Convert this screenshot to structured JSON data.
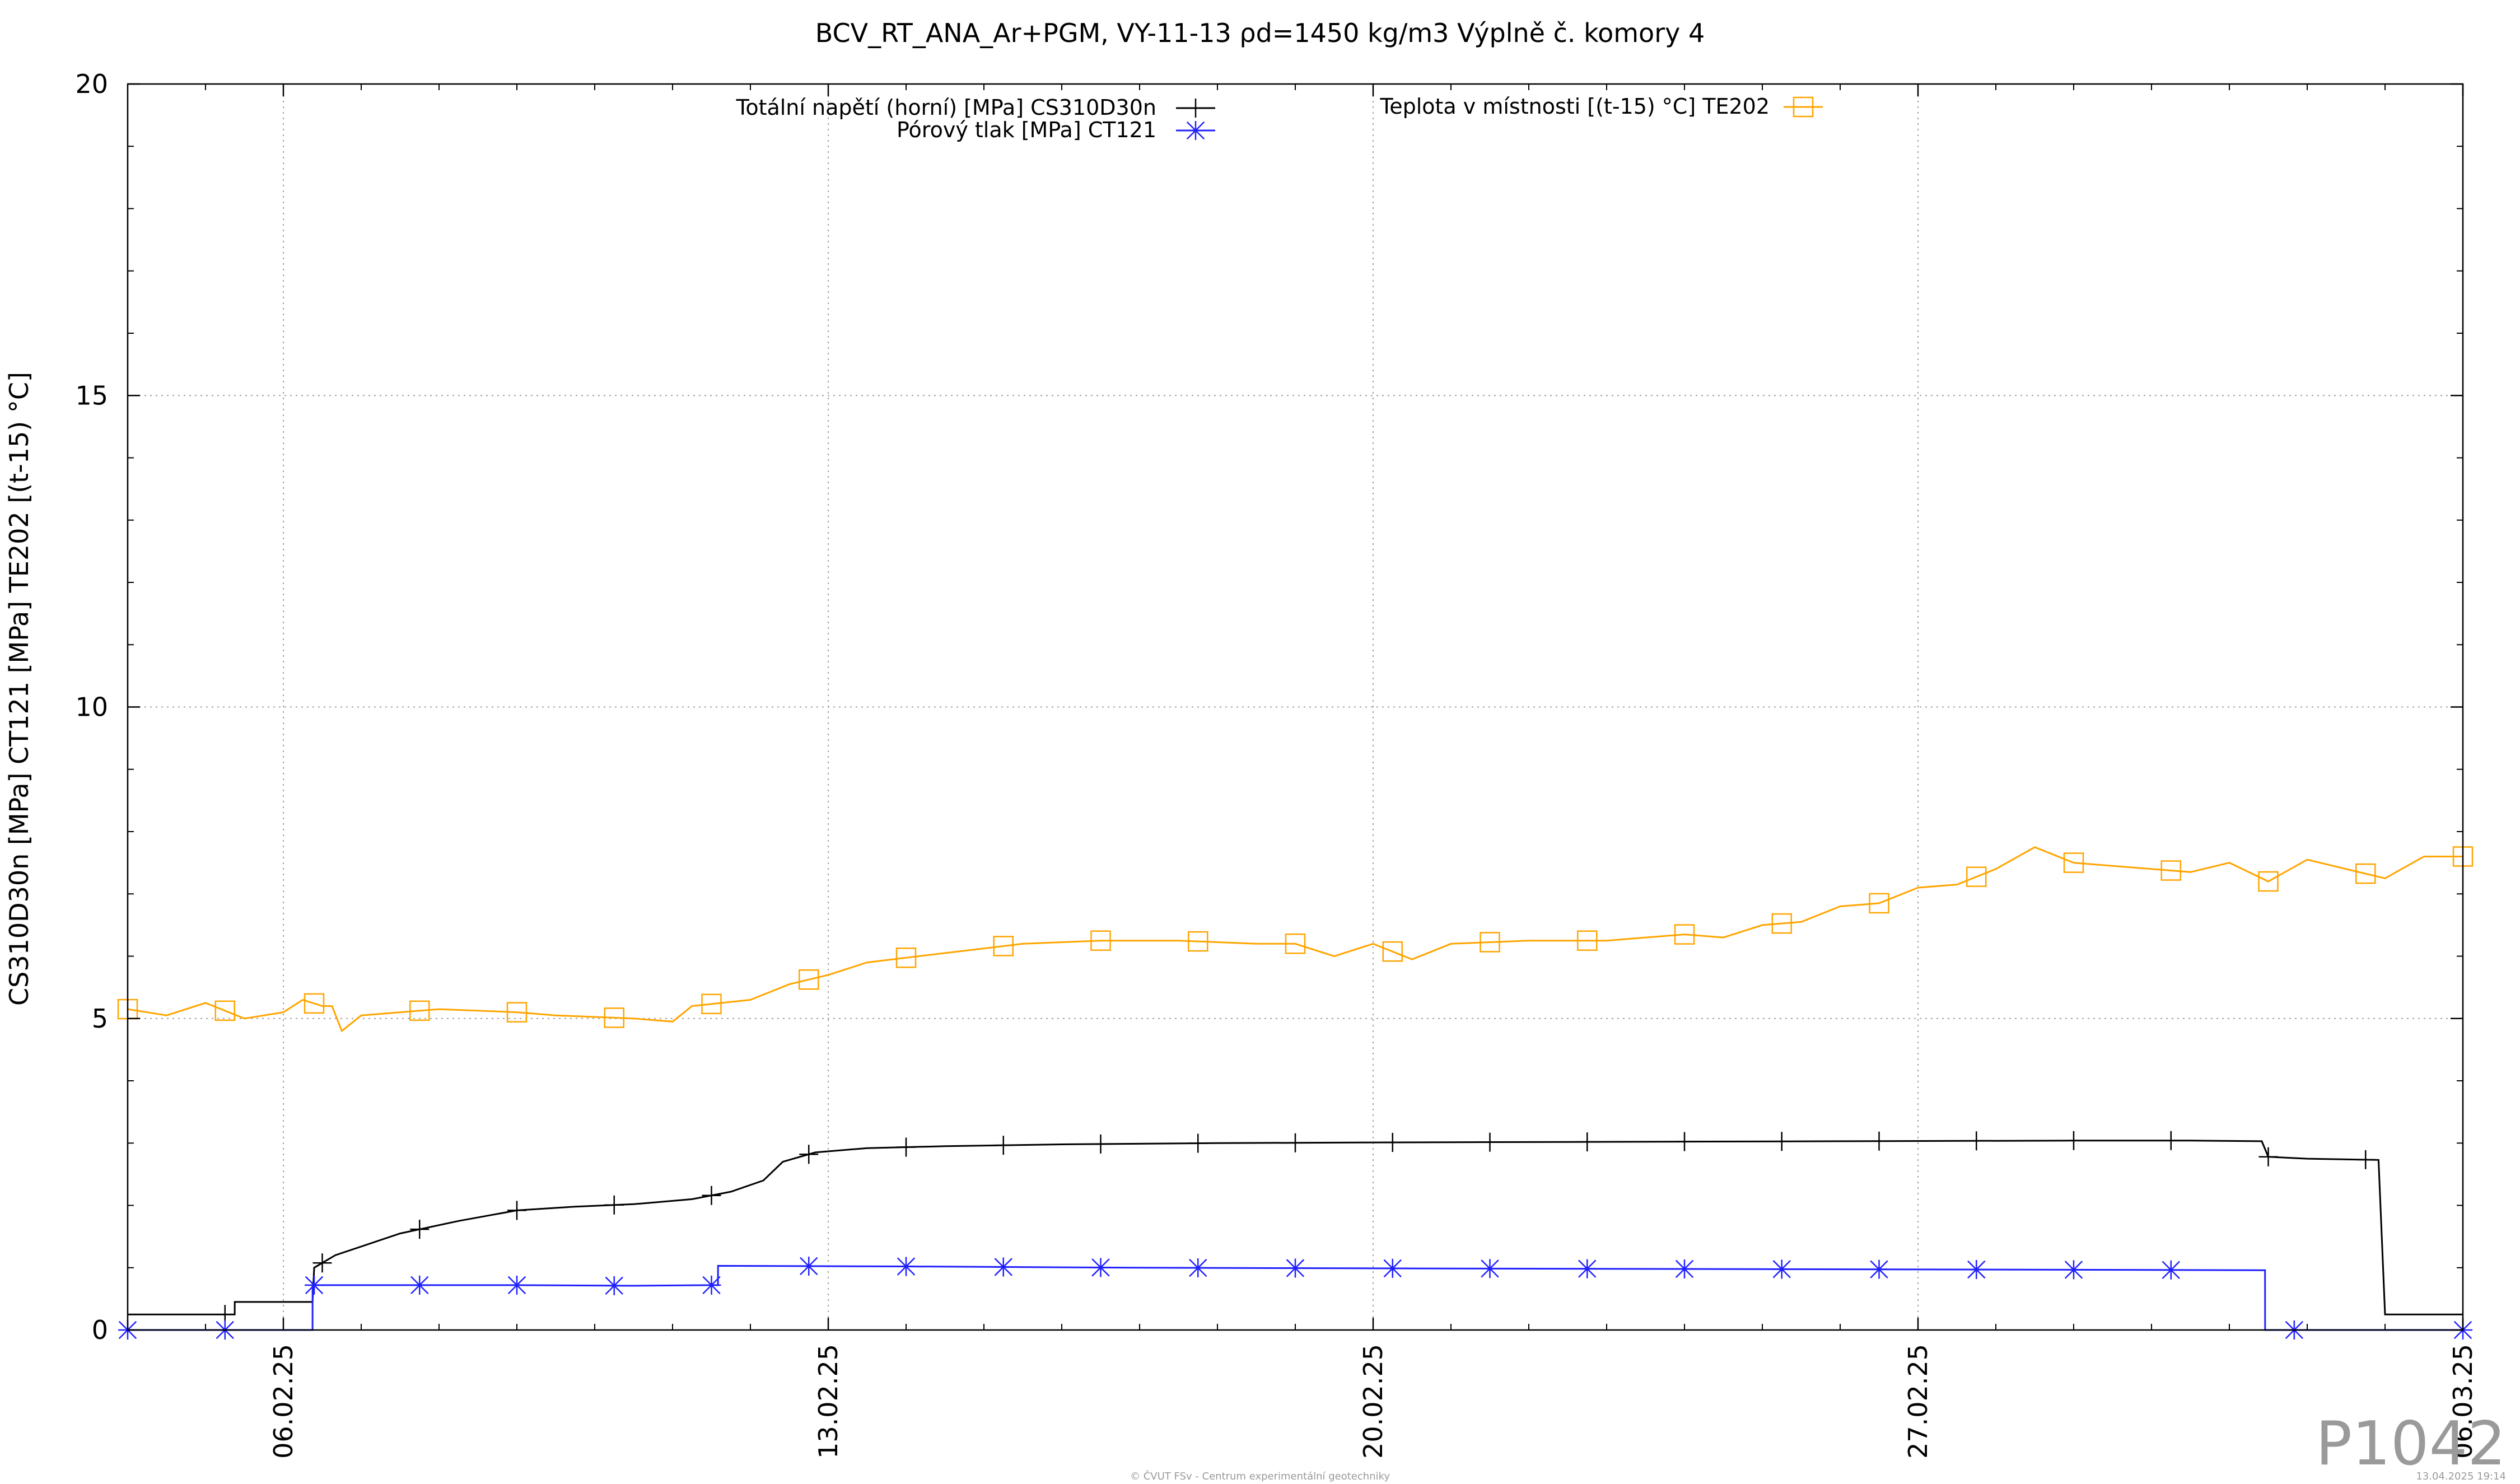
{
  "chart_data": {
    "type": "line",
    "title": "BCV_RT_ANA_Ar+PGM, VY-11-13 ρd=1450 kg/m3 Výplně č. komory 4",
    "ylabel": "CS310D30n [MPa] CT121 [MPa] TE202 [(t-15) °C]",
    "xlabel": "",
    "xlim": [
      "2025-02-04T00:00",
      "2025-03-06T00:00"
    ],
    "ylim": [
      0,
      20
    ],
    "yticks": [
      "0",
      "5",
      "10",
      "15",
      "20"
    ],
    "xticks": [
      {
        "label": "06.02.25",
        "date": "2025-02-06"
      },
      {
        "label": "13.02.25",
        "date": "2025-02-13"
      },
      {
        "label": "20.02.25",
        "date": "2025-02-20"
      },
      {
        "label": "27.02.25",
        "date": "2025-02-27"
      },
      {
        "label": "06.03.25",
        "date": "2025-03-06"
      }
    ],
    "grid": true,
    "legend_position": "top",
    "series": [
      {
        "name": "Totální napětí (horní) [MPa] CS310D30n",
        "color": "#000000",
        "marker": "plus",
        "points": [
          [
            "2025-02-04T00:00",
            0.25
          ],
          [
            "2025-02-05T09:00",
            0.25
          ],
          [
            "2025-02-05T09:01",
            0.45
          ],
          [
            "2025-02-06T09:00",
            0.45
          ],
          [
            "2025-02-06T09:30",
            1.0
          ],
          [
            "2025-02-06T16:00",
            1.2
          ],
          [
            "2025-02-07T12:00",
            1.55
          ],
          [
            "2025-02-08T06:00",
            1.75
          ],
          [
            "2025-02-09T00:00",
            1.92
          ],
          [
            "2025-02-09T18:00",
            1.98
          ],
          [
            "2025-02-10T12:00",
            2.02
          ],
          [
            "2025-02-11T06:00",
            2.1
          ],
          [
            "2025-02-11T18:00",
            2.22
          ],
          [
            "2025-02-12T04:00",
            2.4
          ],
          [
            "2025-02-12T10:00",
            2.7
          ],
          [
            "2025-02-12T20:00",
            2.85
          ],
          [
            "2025-02-13T12:00",
            2.92
          ],
          [
            "2025-02-14T12:00",
            2.95
          ],
          [
            "2025-02-16T00:00",
            2.98
          ],
          [
            "2025-02-18T00:00",
            3.0
          ],
          [
            "2025-02-20T00:00",
            3.01
          ],
          [
            "2025-02-23T00:00",
            3.02
          ],
          [
            "2025-02-26T00:00",
            3.03
          ],
          [
            "2025-03-01T00:00",
            3.04
          ],
          [
            "2025-03-02T12:00",
            3.04
          ],
          [
            "2025-03-03T10:00",
            3.03
          ],
          [
            "2025-03-03T12:00",
            2.78
          ],
          [
            "2025-03-04T00:00",
            2.75
          ],
          [
            "2025-03-04T22:00",
            2.73
          ],
          [
            "2025-03-05T00:00",
            0.25
          ],
          [
            "2025-03-06T00:00",
            0.25
          ]
        ],
        "markers_at": [
          "2025-02-05T06:00",
          "2025-02-06T12:00",
          "2025-02-07T18:00",
          "2025-02-09T00:00",
          "2025-02-10T06:00",
          "2025-02-11T12:00",
          "2025-02-12T18:00",
          "2025-02-14T00:00",
          "2025-02-15T06:00",
          "2025-02-16T12:00",
          "2025-02-17T18:00",
          "2025-02-19T00:00",
          "2025-02-20T06:00",
          "2025-02-21T12:00",
          "2025-02-22T18:00",
          "2025-02-24T00:00",
          "2025-02-25T06:00",
          "2025-02-26T12:00",
          "2025-02-27T18:00",
          "2025-03-01T00:00",
          "2025-03-02T06:00",
          "2025-03-03T12:00",
          "2025-03-04T18:00"
        ]
      },
      {
        "name": "Pórový tlak [MPa] CT121",
        "color": "#2020ff",
        "marker": "star",
        "points": [
          [
            "2025-02-04T00:00",
            0.0
          ],
          [
            "2025-02-06T09:00",
            0.0
          ],
          [
            "2025-02-06T09:01",
            0.72
          ],
          [
            "2025-02-07T12:00",
            0.72
          ],
          [
            "2025-02-09T00:00",
            0.72
          ],
          [
            "2025-02-10T12:00",
            0.71
          ],
          [
            "2025-02-11T12:00",
            0.72
          ],
          [
            "2025-02-11T14:00",
            0.72
          ],
          [
            "2025-02-11T14:01",
            1.03
          ],
          [
            "2025-02-14T00:00",
            1.02
          ],
          [
            "2025-02-17T00:00",
            1.0
          ],
          [
            "2025-02-20T00:00",
            0.99
          ],
          [
            "2025-02-24T00:00",
            0.98
          ],
          [
            "2025-02-28T00:00",
            0.97
          ],
          [
            "2025-03-03T11:00",
            0.96
          ],
          [
            "2025-03-03T11:01",
            0.0
          ],
          [
            "2025-03-06T00:00",
            0.0
          ]
        ],
        "markers_at": [
          "2025-02-04T00:00",
          "2025-02-05T06:00",
          "2025-02-06T09:30",
          "2025-02-07T18:00",
          "2025-02-09T00:00",
          "2025-02-10T06:00",
          "2025-02-11T12:00",
          "2025-02-12T18:00",
          "2025-02-14T00:00",
          "2025-02-15T06:00",
          "2025-02-16T12:00",
          "2025-02-17T18:00",
          "2025-02-19T00:00",
          "2025-02-20T06:00",
          "2025-02-21T12:00",
          "2025-02-22T18:00",
          "2025-02-24T00:00",
          "2025-02-25T06:00",
          "2025-02-26T12:00",
          "2025-02-27T18:00",
          "2025-03-01T00:00",
          "2025-03-02T06:00",
          "2025-03-03T20:00",
          "2025-03-06T00:00"
        ]
      },
      {
        "name": "Teplota v místnosti [(t-15) °C] TE202",
        "color": "#ffa500",
        "marker": "square",
        "points": [
          [
            "2025-02-04T00:00",
            5.15
          ],
          [
            "2025-02-04T12:00",
            5.05
          ],
          [
            "2025-02-05T00:00",
            5.25
          ],
          [
            "2025-02-05T12:00",
            5.0
          ],
          [
            "2025-02-06T00:00",
            5.1
          ],
          [
            "2025-02-06T06:00",
            5.3
          ],
          [
            "2025-02-06T12:00",
            5.2
          ],
          [
            "2025-02-06T15:00",
            5.2
          ],
          [
            "2025-02-06T18:00",
            4.8
          ],
          [
            "2025-02-07T00:00",
            5.05
          ],
          [
            "2025-02-08T00:00",
            5.15
          ],
          [
            "2025-02-09T00:00",
            5.1
          ],
          [
            "2025-02-09T12:00",
            5.05
          ],
          [
            "2025-02-10T12:00",
            5.0
          ],
          [
            "2025-02-11T00:00",
            4.95
          ],
          [
            "2025-02-11T06:00",
            5.2
          ],
          [
            "2025-02-12T00:00",
            5.3
          ],
          [
            "2025-02-12T12:00",
            5.55
          ],
          [
            "2025-02-13T00:00",
            5.7
          ],
          [
            "2025-02-13T12:00",
            5.9
          ],
          [
            "2025-02-14T12:00",
            6.05
          ],
          [
            "2025-02-15T12:00",
            6.2
          ],
          [
            "2025-02-16T12:00",
            6.25
          ],
          [
            "2025-02-17T12:00",
            6.25
          ],
          [
            "2025-02-18T12:00",
            6.2
          ],
          [
            "2025-02-19T00:00",
            6.2
          ],
          [
            "2025-02-19T12:00",
            6.0
          ],
          [
            "2025-02-20T00:00",
            6.2
          ],
          [
            "2025-02-20T12:00",
            5.95
          ],
          [
            "2025-02-21T00:00",
            6.2
          ],
          [
            "2025-02-22T00:00",
            6.25
          ],
          [
            "2025-02-23T00:00",
            6.25
          ],
          [
            "2025-02-24T00:00",
            6.35
          ],
          [
            "2025-02-24T12:00",
            6.3
          ],
          [
            "2025-02-25T00:00",
            6.5
          ],
          [
            "2025-02-25T12:00",
            6.55
          ],
          [
            "2025-02-26T00:00",
            6.8
          ],
          [
            "2025-02-26T12:00",
            6.85
          ],
          [
            "2025-02-27T00:00",
            7.1
          ],
          [
            "2025-02-27T12:00",
            7.15
          ],
          [
            "2025-02-28T00:00",
            7.4
          ],
          [
            "2025-02-28T12:00",
            7.75
          ],
          [
            "2025-03-01T00:00",
            7.5
          ],
          [
            "2025-03-01T12:00",
            7.45
          ],
          [
            "2025-03-02T00:00",
            7.4
          ],
          [
            "2025-03-02T12:00",
            7.35
          ],
          [
            "2025-03-03T00:00",
            7.5
          ],
          [
            "2025-03-03T12:00",
            7.2
          ],
          [
            "2025-03-04T00:00",
            7.55
          ],
          [
            "2025-03-04T12:00",
            7.4
          ],
          [
            "2025-03-05T00:00",
            7.25
          ],
          [
            "2025-03-05T12:00",
            7.6
          ],
          [
            "2025-03-06T00:00",
            7.6
          ]
        ],
        "markers_at": [
          "2025-02-04T00:00",
          "2025-02-05T06:00",
          "2025-02-06T09:30",
          "2025-02-07T18:00",
          "2025-02-09T00:00",
          "2025-02-10T06:00",
          "2025-02-11T12:00",
          "2025-02-12T18:00",
          "2025-02-14T00:00",
          "2025-02-15T06:00",
          "2025-02-16T12:00",
          "2025-02-17T18:00",
          "2025-02-19T00:00",
          "2025-02-20T06:00",
          "2025-02-21T12:00",
          "2025-02-22T18:00",
          "2025-02-24T00:00",
          "2025-02-25T06:00",
          "2025-02-26T12:00",
          "2025-02-27T18:00",
          "2025-03-01T00:00",
          "2025-03-02T06:00",
          "2025-03-03T12:00",
          "2025-03-04T18:00",
          "2025-03-06T00:00"
        ]
      }
    ]
  },
  "overlay": {
    "plot_id": "P1042",
    "footer_center": "© ČVUT FSv - Centrum experimentální geotechniky",
    "footer_right": "13.04.2025 19:14"
  }
}
